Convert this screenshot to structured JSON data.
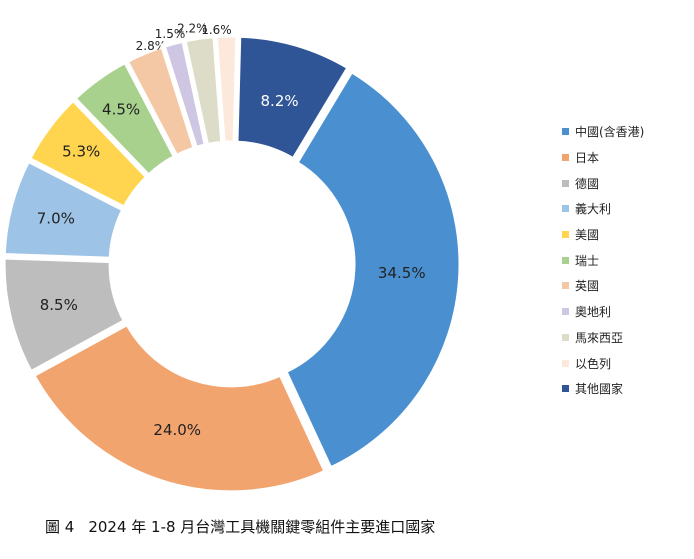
{
  "chart_data": {
    "type": "pie",
    "style": "donut",
    "slice_gap": "white separators, slices slightly exploded",
    "legend_position": "right",
    "series": [
      {
        "name": "中國(含香港)",
        "value": 34.5,
        "label": "34.5%",
        "color": "#4A90D0"
      },
      {
        "name": "日本",
        "value": 24.0,
        "label": "24.0%",
        "color": "#F2A46E"
      },
      {
        "name": "德國",
        "value": 8.5,
        "label": "8.5%",
        "color": "#BDBDBD"
      },
      {
        "name": "義大利",
        "value": 7.0,
        "label": "7.0%",
        "color": "#9DC3E6"
      },
      {
        "name": "美國",
        "value": 5.3,
        "label": "5.3%",
        "color": "#FFD54F"
      },
      {
        "name": "瑞士",
        "value": 4.5,
        "label": "4.5%",
        "color": "#A9D18E"
      },
      {
        "name": "英國",
        "value": 2.8,
        "label": "2.8%",
        "color": "#F4C7A5"
      },
      {
        "name": "奧地利",
        "value": 1.5,
        "label": "1.5%",
        "color": "#CFC6E3"
      },
      {
        "name": "馬來西亞",
        "value": 2.2,
        "label": "2.2%",
        "color": "#DDDCC8"
      },
      {
        "name": "以色列",
        "value": 1.6,
        "label": "1.6%",
        "color": "#FCE9DC"
      },
      {
        "name": "其他國家",
        "value": 8.2,
        "label": "8.2%",
        "color": "#2F5597"
      }
    ]
  },
  "caption": {
    "figure_label": "圖 4",
    "title": "2024 年 1-8 月台灣工具機關鍵零組件主要進口國家"
  }
}
